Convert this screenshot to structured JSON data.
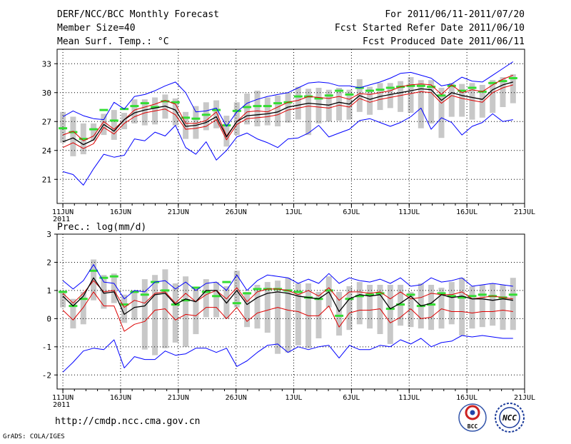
{
  "header": {
    "title": "DERF/NCC/BCC Monthly Forecast",
    "member_size": "Member Size=40",
    "variable": "Mean Surf. Temp.: °C",
    "period": "For 2011/06/11-2011/07/20",
    "started": "Fcst Started Refer Date 2011/06/10",
    "produced": "Fcst Produced Date 2011/06/11"
  },
  "footer": {
    "url": "http://cmdp.ncc.cma.gov.cn",
    "grads": "GrADS: COLA/IGES",
    "logo_bcc": "BCC",
    "logo_ncc": "NCC"
  },
  "colors": {
    "max_min": "#0000ff",
    "quantile": "#dd0000",
    "mean": "#000000",
    "box": "#c8c8c8",
    "member": "#33dd33",
    "grid": "#000000"
  },
  "chart_data": [
    {
      "type": "line",
      "title": "Mean Surf. Temp.: °C",
      "x_day_range": [
        10,
        40
      ],
      "x_ticks": [
        {
          "day": 10,
          "label": "11JUN",
          "sub": "2011"
        },
        {
          "day": 15,
          "label": "16JUN",
          "sub": ""
        },
        {
          "day": 20,
          "label": "21JUN",
          "sub": ""
        },
        {
          "day": 25,
          "label": "26JUN",
          "sub": ""
        },
        {
          "day": 30,
          "label": "1JUL",
          "sub": ""
        },
        {
          "day": 35,
          "label": "6JUL",
          "sub": ""
        },
        {
          "day": 40,
          "label": "11JUL",
          "sub": ""
        },
        {
          "day": 45,
          "label": "16JUL",
          "sub": ""
        },
        {
          "day": 50,
          "label": "21JUL",
          "sub": ""
        }
      ],
      "x_range": [
        9.5,
        50
      ],
      "ylim": [
        18.5,
        34.5
      ],
      "y_ticks": [
        21,
        24,
        27,
        30,
        33
      ],
      "y_labels": [
        "21",
        "24",
        "27",
        "30",
        "33"
      ],
      "max": [
        27.5,
        28.1,
        27.6,
        27.3,
        27.2,
        29.0,
        28.3,
        29.6,
        29.8,
        30.2,
        30.7,
        31.1,
        30.0,
        28.0,
        28.1,
        28.4,
        26.5,
        28.0,
        28.9,
        29.3,
        29.6,
        29.8,
        30.0,
        30.5,
        31.0,
        31.1,
        31.0,
        30.7,
        30.7,
        30.5,
        30.8,
        31.1,
        31.5,
        32.0,
        32.1,
        31.8,
        31.5,
        30.7,
        30.9,
        31.6,
        31.2,
        31.1,
        31.8,
        32.5,
        33.2
      ],
      "q_hi": [
        25.6,
        26.0,
        25.0,
        25.5,
        27.0,
        26.2,
        27.2,
        28.2,
        28.5,
        28.8,
        29.2,
        28.8,
        26.8,
        26.8,
        27.1,
        28.0,
        25.5,
        27.0,
        28.0,
        28.1,
        28.0,
        28.5,
        29.0,
        29.2,
        29.6,
        29.5,
        29.4,
        29.6,
        29.3,
        29.9,
        29.8,
        30.0,
        30.2,
        30.6,
        30.8,
        30.9,
        30.8,
        29.8,
        30.8,
        30.0,
        30.3,
        30.1,
        30.8,
        31.4,
        31.8
      ],
      "mean": [
        24.9,
        25.3,
        24.6,
        25.1,
        26.7,
        26.0,
        27.2,
        27.9,
        28.2,
        28.4,
        28.6,
        28.2,
        26.5,
        26.6,
        26.9,
        27.5,
        25.4,
        27.0,
        27.6,
        27.7,
        27.8,
        28.0,
        28.5,
        28.7,
        28.9,
        28.8,
        28.7,
        29.0,
        28.8,
        29.7,
        29.3,
        29.6,
        29.8,
        30.0,
        30.2,
        30.4,
        30.3,
        29.2,
        30.0,
        29.7,
        29.5,
        29.3,
        30.3,
        30.8,
        31.1
      ],
      "q_lo": [
        24.3,
        24.8,
        24.2,
        24.7,
        26.4,
        25.7,
        26.8,
        27.5,
        27.9,
        28.1,
        28.3,
        27.7,
        26.2,
        26.3,
        26.5,
        27.2,
        25.1,
        26.7,
        27.3,
        27.4,
        27.5,
        27.7,
        28.2,
        28.4,
        28.6,
        28.5,
        28.4,
        28.7,
        28.5,
        29.4,
        29.0,
        29.3,
        29.5,
        29.7,
        29.9,
        30.1,
        30.0,
        28.9,
        29.7,
        29.4,
        29.2,
        29.0,
        30.0,
        30.5,
        30.8
      ],
      "min": [
        21.8,
        21.5,
        20.4,
        22.1,
        23.6,
        23.3,
        23.5,
        25.2,
        25.0,
        25.9,
        25.5,
        26.6,
        24.3,
        23.6,
        24.9,
        23.0,
        24.0,
        25.4,
        25.8,
        25.2,
        24.8,
        24.3,
        25.2,
        25.3,
        25.8,
        26.6,
        25.4,
        25.8,
        26.2,
        27.1,
        27.3,
        26.9,
        26.5,
        26.9,
        27.5,
        28.4,
        26.2,
        27.4,
        26.9,
        25.6,
        26.5,
        26.9,
        27.8,
        27.0,
        27.2
      ],
      "box_hi": [
        28.0,
        27.5,
        26.8,
        26.8,
        27.8,
        28.2,
        27.9,
        29.3,
        29.3,
        29.5,
        29.8,
        29.4,
        28.0,
        28.6,
        29.0,
        29.2,
        27.6,
        29.0,
        29.9,
        30.2,
        29.5,
        29.7,
        30.0,
        30.6,
        30.4,
        30.5,
        30.3,
        30.5,
        30.3,
        31.4,
        30.6,
        31.0,
        31.0,
        31.2,
        31.6,
        31.3,
        31.3,
        30.5,
        31.0,
        30.9,
        31.0,
        30.8,
        31.3,
        31.6,
        31.9
      ],
      "box_lo": [
        24.8,
        23.4,
        23.6,
        25.0,
        25.6,
        25.1,
        26.2,
        26.8,
        26.6,
        26.7,
        27.3,
        26.6,
        25.2,
        25.2,
        26.1,
        26.3,
        24.4,
        25.6,
        26.7,
        26.5,
        26.6,
        26.5,
        26.9,
        27.2,
        25.6,
        26.8,
        27.0,
        27.1,
        27.2,
        28.0,
        27.7,
        28.2,
        28.4,
        28.0,
        27.9,
        26.3,
        26.8,
        25.3,
        27.5,
        27.5,
        27.2,
        27.4,
        27.9,
        28.5,
        28.9
      ],
      "member": [
        26.3,
        25.9,
        25.2,
        26.2,
        28.2,
        27.1,
        28.3,
        28.6,
        28.9,
        28.5,
        29.1,
        29.0,
        27.4,
        27.3,
        27.7,
        28.2,
        26.6,
        28.1,
        28.5,
        28.6,
        28.6,
        28.9,
        29.0,
        29.6,
        29.6,
        29.4,
        29.7,
        30.2,
        29.8,
        30.5,
        30.2,
        30.3,
        30.5,
        30.6,
        30.7,
        30.7,
        30.6,
        29.7,
        30.7,
        30.2,
        30.5,
        30.1,
        31.0,
        31.2,
        31.5
      ]
    },
    {
      "type": "line",
      "title": "Prec.: log(mm/d)",
      "x_ticks": [
        {
          "day": 10,
          "label": "11JUN",
          "sub": "2011"
        },
        {
          "day": 15,
          "label": "16JUN",
          "sub": ""
        },
        {
          "day": 20,
          "label": "21JUN",
          "sub": ""
        },
        {
          "day": 25,
          "label": "26JUN",
          "sub": ""
        },
        {
          "day": 30,
          "label": "1JUL",
          "sub": ""
        },
        {
          "day": 35,
          "label": "6JUL",
          "sub": ""
        },
        {
          "day": 40,
          "label": "11JUL",
          "sub": ""
        },
        {
          "day": 45,
          "label": "16JUL",
          "sub": ""
        },
        {
          "day": 50,
          "label": "21JUL",
          "sub": ""
        }
      ],
      "x_range": [
        9.5,
        50
      ],
      "ylim": [
        -2.5,
        3
      ],
      "y_ticks": [
        -2,
        -1,
        0,
        1,
        2,
        3
      ],
      "y_labels": [
        "-2",
        "-1",
        "0",
        "1",
        "2",
        "3"
      ],
      "max": [
        1.35,
        1.05,
        1.35,
        1.92,
        1.3,
        1.25,
        0.7,
        1.0,
        0.95,
        1.3,
        1.35,
        1.05,
        1.3,
        1.0,
        1.25,
        1.3,
        1.0,
        1.55,
        1.0,
        1.35,
        1.55,
        1.5,
        1.45,
        1.25,
        1.4,
        1.25,
        1.6,
        1.25,
        1.45,
        1.35,
        1.3,
        1.4,
        1.25,
        1.45,
        1.15,
        1.2,
        1.45,
        1.3,
        1.35,
        1.45,
        1.15,
        1.2,
        1.25,
        1.2,
        1.15
      ],
      "q_hi": [
        0.9,
        0.55,
        0.9,
        1.35,
        0.95,
        1.0,
        0.4,
        0.65,
        0.55,
        0.9,
        0.95,
        0.55,
        0.9,
        0.6,
        0.85,
        1.0,
        0.7,
        1.1,
        0.6,
        0.95,
        1.05,
        1.05,
        1.0,
        0.85,
        1.0,
        0.8,
        1.1,
        0.65,
        0.95,
        0.95,
        0.9,
        0.95,
        0.7,
        0.95,
        0.7,
        0.75,
        0.9,
        0.85,
        0.85,
        0.95,
        0.7,
        0.75,
        0.8,
        0.75,
        0.7
      ],
      "mean": [
        0.8,
        0.45,
        0.8,
        1.45,
        0.9,
        0.95,
        0.15,
        0.4,
        0.45,
        0.85,
        0.9,
        0.5,
        0.7,
        0.6,
        1.0,
        1.0,
        0.55,
        1.0,
        0.5,
        0.75,
        0.9,
        0.95,
        0.9,
        0.8,
        0.75,
        0.7,
        0.95,
        0.25,
        0.7,
        0.85,
        0.8,
        0.85,
        0.35,
        0.55,
        0.8,
        0.45,
        0.55,
        0.85,
        0.75,
        0.8,
        0.7,
        0.7,
        0.65,
        0.7,
        0.65
      ],
      "q_lo": [
        0.3,
        -0.05,
        0.4,
        0.95,
        0.45,
        0.45,
        -0.45,
        -0.2,
        -0.1,
        0.3,
        0.35,
        -0.05,
        0.15,
        0.1,
        0.4,
        0.4,
        0.0,
        0.4,
        -0.1,
        0.2,
        0.3,
        0.4,
        0.3,
        0.25,
        0.1,
        0.1,
        0.45,
        -0.3,
        0.2,
        0.3,
        0.3,
        0.35,
        -0.15,
        0.05,
        0.35,
        0.0,
        0.05,
        0.35,
        0.25,
        0.25,
        0.2,
        0.25,
        0.25,
        0.3,
        0.25
      ],
      "min": [
        -1.9,
        -1.55,
        -1.15,
        -1.05,
        -1.1,
        -0.75,
        -1.75,
        -1.35,
        -1.45,
        -1.45,
        -1.15,
        -1.3,
        -1.25,
        -1.05,
        -1.05,
        -1.2,
        -1.05,
        -1.7,
        -1.5,
        -1.2,
        -0.95,
        -0.9,
        -1.2,
        -1.0,
        -1.1,
        -1.0,
        -0.95,
        -1.4,
        -0.95,
        -1.1,
        -1.1,
        -0.95,
        -1.0,
        -0.75,
        -0.9,
        -0.7,
        -1.0,
        -0.85,
        -0.8,
        -0.6,
        -0.65,
        -0.6,
        -0.65,
        -0.7,
        -0.7
      ],
      "box_hi": [
        1.0,
        0.7,
        0.95,
        2.1,
        1.55,
        1.6,
        0.85,
        1.0,
        1.4,
        1.55,
        1.75,
        1.25,
        1.5,
        1.1,
        1.4,
        1.3,
        1.15,
        1.7,
        0.95,
        1.2,
        1.3,
        1.35,
        1.45,
        1.25,
        1.25,
        0.95,
        1.5,
        0.95,
        1.15,
        1.3,
        1.2,
        1.2,
        1.2,
        1.2,
        0.95,
        1.25,
        1.2,
        1.1,
        1.3,
        1.45,
        1.15,
        1.2,
        1.25,
        1.2,
        1.45
      ],
      "box_lo": [
        0.4,
        -0.35,
        -0.2,
        0.65,
        0.35,
        0.55,
        -0.15,
        -0.05,
        -1.1,
        -1.3,
        -1.05,
        -0.85,
        -1.0,
        -0.55,
        0.05,
        0.05,
        0.0,
        0.4,
        -0.3,
        -0.35,
        -0.5,
        -1.25,
        -1.2,
        -0.95,
        -1.05,
        -0.7,
        0.4,
        -0.6,
        -0.4,
        -0.2,
        -0.35,
        -0.55,
        -0.9,
        -0.25,
        -0.3,
        -0.35,
        -0.4,
        -0.35,
        -0.2,
        -0.6,
        -0.35,
        -0.3,
        -0.25,
        -0.4,
        -0.4
      ],
      "member": [
        0.95,
        0.45,
        0.7,
        1.7,
        1.45,
        1.5,
        0.5,
        0.95,
        0.85,
        1.3,
        1.0,
        0.5,
        0.65,
        1.1,
        0.95,
        0.8,
        1.3,
        0.55,
        0.9,
        1.05,
        1.05,
        1.05,
        1.0,
        0.95,
        0.75,
        0.7,
        1.0,
        0.1,
        0.7,
        0.8,
        0.85,
        0.9,
        0.35,
        0.5,
        0.85,
        0.45,
        0.5,
        0.9,
        0.8,
        0.75,
        0.8,
        0.85,
        0.8,
        0.75,
        0.85
      ]
    }
  ]
}
